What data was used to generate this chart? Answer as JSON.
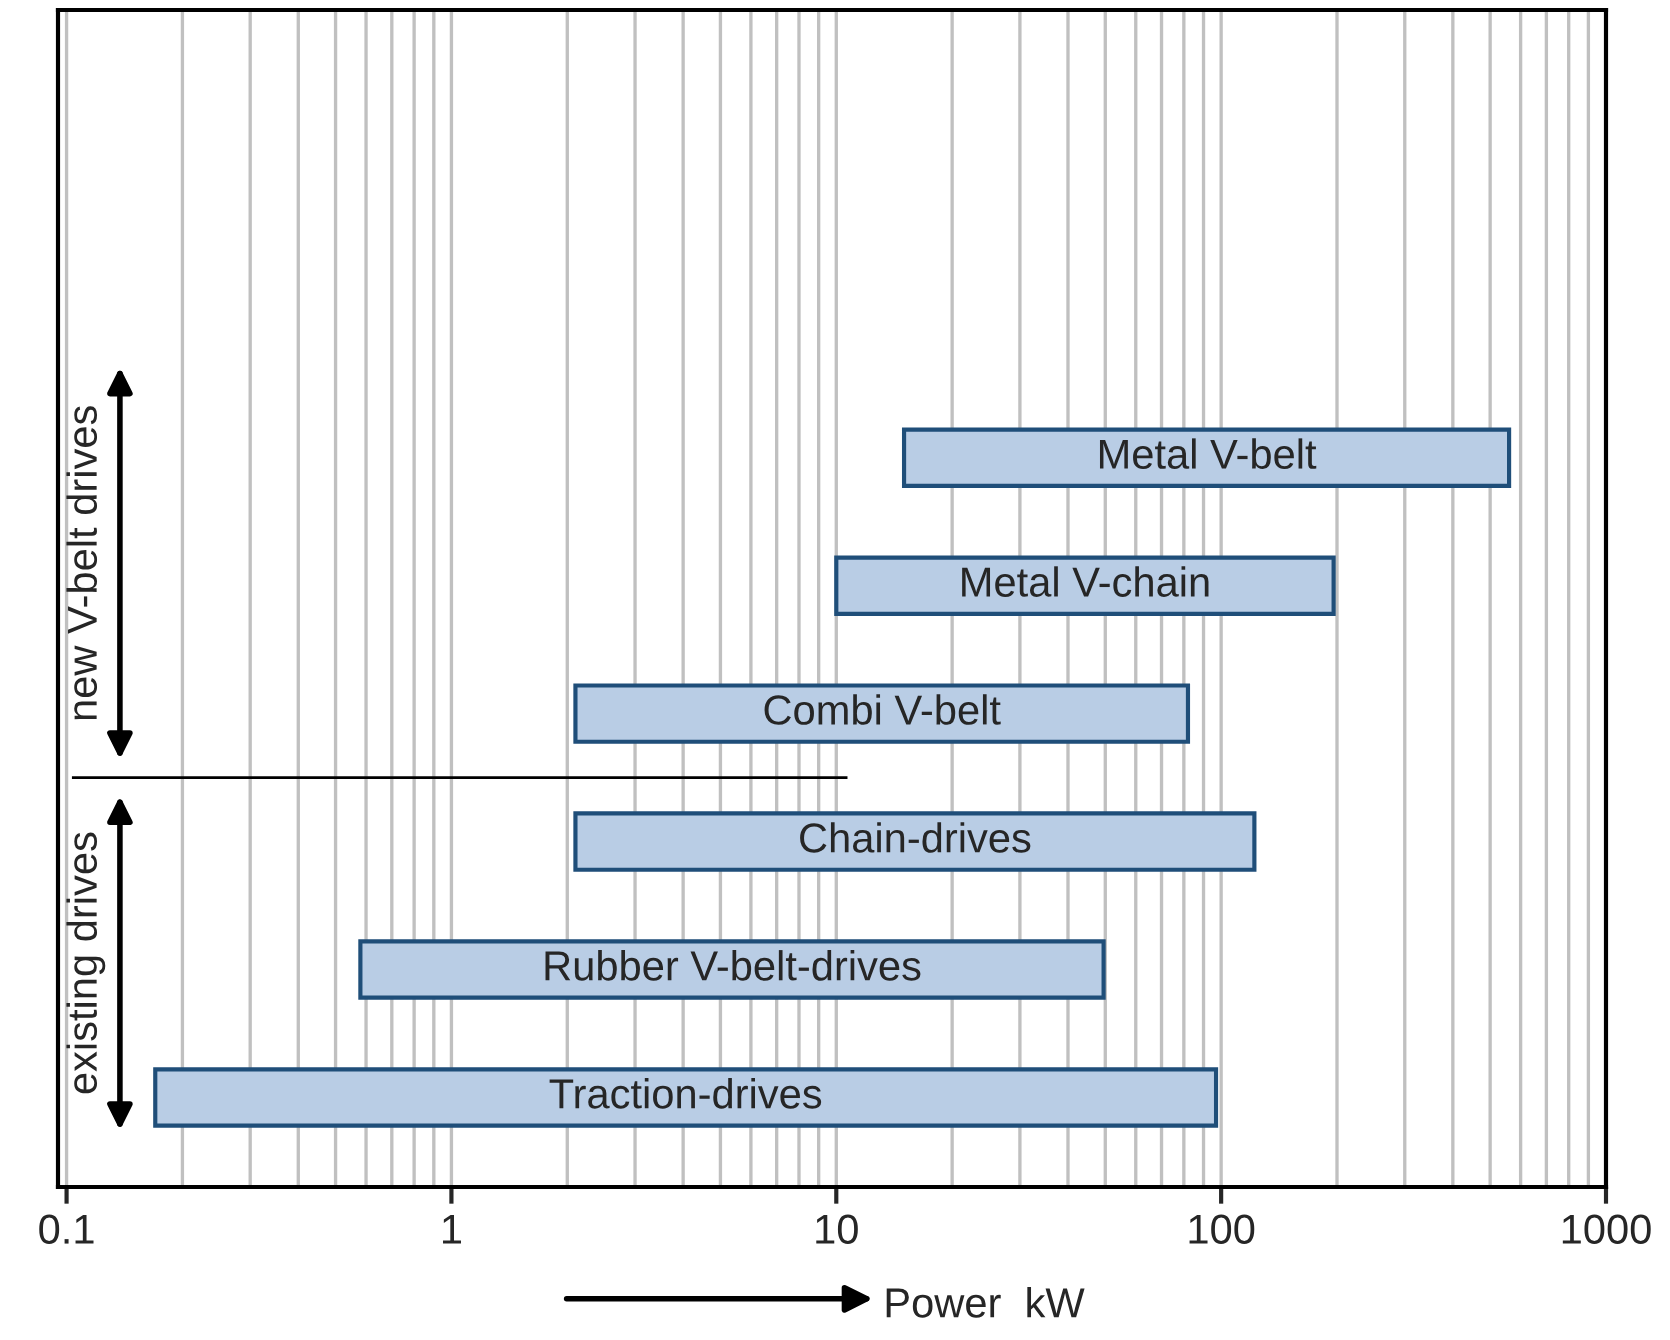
{
  "chart_data": {
    "type": "bar",
    "orientation": "horizontal",
    "xlabel": "Power  kW",
    "categories": [
      "Metal V-belt",
      "Metal V-chain",
      "Combi V-belt",
      "Chain-drives",
      "Rubber V-belt-drives",
      "Traction-drives"
    ],
    "base": [
      15,
      10,
      2.1,
      2.1,
      0.58,
      0.17
    ],
    "values": [
      545,
      186,
      79.9,
      119.9,
      48.92,
      96.83
    ],
    "color": "#b9cde5",
    "log": "x",
    "xlim": [
      0.095,
      1000
    ],
    "xticks": [
      0.1,
      1,
      10,
      100,
      1000
    ],
    "grid": "x",
    "tick_labels": "x",
    "annotations": [
      "new V-belt drives",
      "existing drives"
    ]
  }
}
